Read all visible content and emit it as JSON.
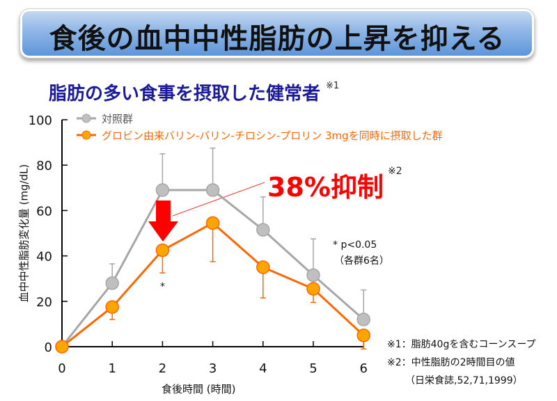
{
  "header": {
    "title": "食後の血中中性脂肪の上昇を抑える"
  },
  "subtitle": {
    "text": "脂肪の多い食事を摂取した健常者",
    "ref": "※1"
  },
  "annotation": {
    "text": "38%抑制",
    "ref": "※2"
  },
  "significance": {
    "line1": "* p<0.05",
    "line2": "（各群6名）",
    "star": "*"
  },
  "footnotes": {
    "note1": "※1：脂肪40gを含むコーンスープ",
    "note2": "※2：中性脂肪の2時間目の値",
    "source": "（日栄食誌,52,71,1999）"
  },
  "colors": {
    "control": "#a6a6a6",
    "control_fill": "#bfbfbf",
    "treatment": "#ff6600",
    "treatment_fill": "#ffa500",
    "annotation": "#ff0000",
    "banner": "#5a93d8",
    "subtitle": "#1a1a9a"
  },
  "chart_data": {
    "type": "line",
    "title": "脂肪の多い食事を摂取した健常者",
    "xlabel": "食後時間 (時間)",
    "ylabel": "血中中性脂肪変化量 (mg/dL)",
    "x": [
      0,
      1,
      2,
      3,
      4,
      5,
      6
    ],
    "xlim": [
      0,
      6
    ],
    "ylim": [
      0,
      100
    ],
    "yticks": [
      0,
      20,
      40,
      60,
      80,
      100
    ],
    "grid": false,
    "legend_position": "top-left",
    "series": [
      {
        "name": "対照群",
        "values": [
          0,
          28,
          69,
          69,
          51.5,
          31.5,
          12
        ],
        "error_upper": [
          0,
          8.5,
          16,
          18.5,
          14.5,
          16,
          13
        ]
      },
      {
        "name": "グロビン由来バリン-バリン-チロシン-プロリン 3mgを同時に摂取した群",
        "values": [
          0,
          17.5,
          42.5,
          54.5,
          35,
          25.5,
          5
        ],
        "error_lower": [
          0,
          5.5,
          10,
          17,
          13.5,
          6,
          6
        ]
      }
    ],
    "annotations": [
      "38%抑制 ※2 (at 2 h)",
      "* p<0.05 at 2 h",
      "（各群6名）"
    ]
  }
}
